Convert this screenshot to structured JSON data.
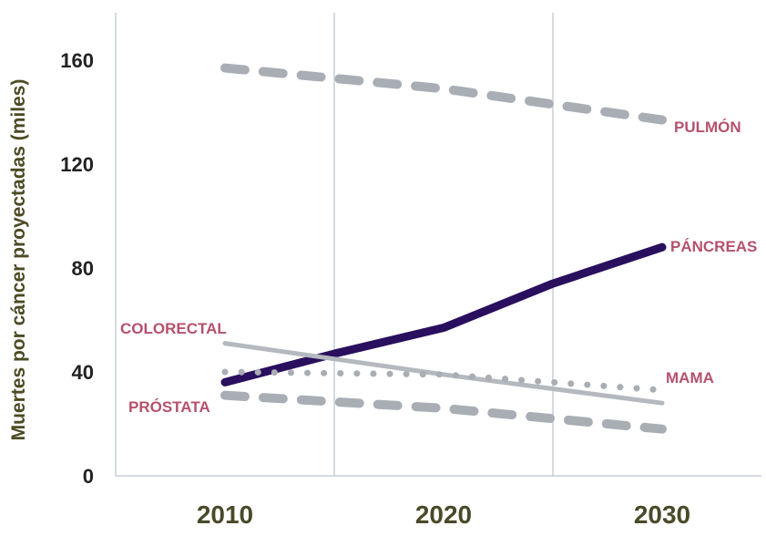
{
  "chart_data": {
    "type": "line",
    "ylabel": "Muertes por cáncer proyectadas (miles)",
    "xlabel": "",
    "ylim": [
      0,
      180
    ],
    "xlim": [
      2010,
      2030
    ],
    "yticks": [
      0,
      40,
      80,
      120,
      160
    ],
    "xticks": [
      2010,
      2020,
      2030
    ],
    "grid": "vertical",
    "label_color": "#b5516d",
    "series": [
      {
        "name": "PULMÓN",
        "style": "dashed",
        "color": "#a9aeb5",
        "x": [
          2010,
          2020,
          2030
        ],
        "values": [
          157,
          149,
          137
        ]
      },
      {
        "name": "PÁNCREAS",
        "style": "solid",
        "color": "#2a0f5e",
        "x": [
          2010,
          2015,
          2020,
          2025,
          2030
        ],
        "values": [
          36,
          47,
          57,
          74,
          88
        ]
      },
      {
        "name": "COLORECTAL",
        "style": "solid",
        "color": "#b4b9bf",
        "x": [
          2010,
          2020,
          2030
        ],
        "values": [
          51,
          39,
          28
        ]
      },
      {
        "name": "MAMA",
        "style": "dotted",
        "color": "#a9aeb5",
        "x": [
          2010,
          2020,
          2030
        ],
        "values": [
          40,
          39,
          33
        ]
      },
      {
        "name": "PRÓSTATA",
        "style": "dashed",
        "color": "#a9aeb5",
        "x": [
          2010,
          2020,
          2030
        ],
        "values": [
          31,
          26,
          18
        ]
      }
    ]
  }
}
